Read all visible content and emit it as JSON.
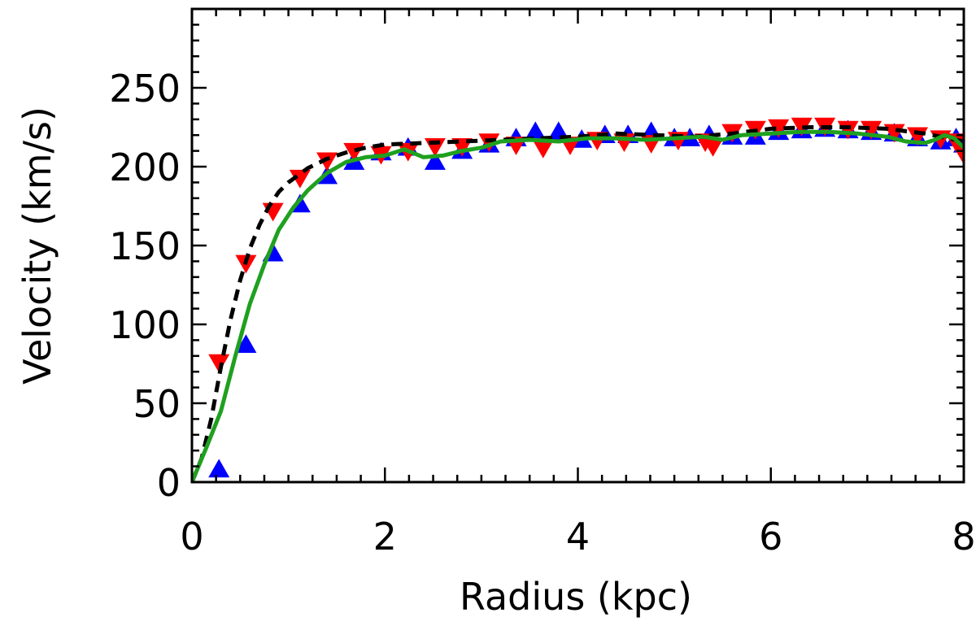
{
  "chart_data": {
    "type": "scatter",
    "title": "",
    "xlabel": "Radius (kpc)",
    "ylabel": "Velocity (km/s)",
    "xlim": [
      0,
      8
    ],
    "ylim": [
      0,
      300
    ],
    "xticks": [
      "0",
      "2",
      "4",
      "6",
      "8"
    ],
    "yticks": [
      "0",
      "50",
      "100",
      "150",
      "200",
      "250"
    ],
    "grid": false,
    "series": [
      {
        "marker": "triangle-up",
        "color": "#0000ff",
        "x": [
          0.28,
          0.56,
          0.84,
          1.12,
          1.4,
          1.68,
          1.96,
          2.24,
          2.52,
          2.8,
          3.08,
          3.36,
          3.56,
          3.8,
          4.04,
          4.28,
          4.52,
          4.76,
          5.0,
          5.16,
          5.36,
          5.6,
          5.84,
          6.08,
          6.32,
          6.56,
          6.8,
          7.04,
          7.28,
          7.52,
          7.76,
          7.92,
          8.0
        ],
        "y": [
          8,
          87,
          145,
          176,
          194,
          203,
          209,
          212,
          203,
          210,
          214,
          218,
          222,
          222,
          217,
          220,
          220,
          222,
          218,
          218,
          220,
          219,
          219,
          222,
          223,
          224,
          223,
          222,
          221,
          218,
          216,
          218,
          214
        ]
      },
      {
        "marker": "triangle-down",
        "color": "#ff0000",
        "x": [
          0.28,
          0.56,
          0.84,
          1.12,
          1.4,
          1.68,
          1.96,
          2.24,
          2.52,
          2.8,
          3.08,
          3.36,
          3.64,
          3.92,
          4.2,
          4.48,
          4.76,
          5.04,
          5.32,
          5.4,
          5.6,
          5.84,
          6.08,
          6.32,
          6.56,
          6.8,
          7.04,
          7.28,
          7.52,
          7.76,
          7.92,
          8.0
        ],
        "y": [
          76,
          139,
          172,
          193,
          204,
          210,
          208,
          210,
          213,
          213,
          216,
          214,
          212,
          214,
          217,
          216,
          215,
          217,
          216,
          213,
          222,
          224,
          225,
          226,
          226,
          224,
          224,
          222,
          220,
          218,
          216,
          208
        ]
      },
      {
        "line": "dashed",
        "color": "#000000",
        "x": [
          0.0,
          0.1,
          0.2,
          0.3,
          0.4,
          0.5,
          0.6,
          0.7,
          0.8,
          0.9,
          1.0,
          1.2,
          1.4,
          1.6,
          1.8,
          2.0,
          2.4,
          2.8,
          3.2,
          3.6,
          4.0,
          4.4,
          4.8,
          5.2,
          5.6,
          6.0,
          6.4,
          6.8,
          7.2,
          7.6,
          8.0
        ],
        "y": [
          0,
          15,
          40,
          73,
          103,
          128,
          148,
          163,
          175,
          184,
          190,
          199,
          205,
          209,
          212,
          214,
          215,
          216,
          217,
          218,
          219,
          221,
          220,
          219,
          221,
          224,
          225,
          225,
          224,
          221,
          216
        ]
      },
      {
        "line": "solid",
        "color": "#1fa01f",
        "x": [
          0.0,
          0.15,
          0.3,
          0.45,
          0.6,
          0.75,
          0.9,
          1.05,
          1.2,
          1.4,
          1.6,
          1.8,
          2.0,
          2.2,
          2.4,
          2.6,
          2.8,
          3.0,
          3.2,
          3.5,
          3.8,
          4.1,
          4.4,
          4.7,
          5.0,
          5.3,
          5.5,
          5.7,
          6.0,
          6.3,
          6.6,
          6.9,
          7.2,
          7.4,
          7.6,
          7.7,
          7.8,
          7.9,
          8.0
        ],
        "y": [
          0,
          22,
          45,
          80,
          113,
          138,
          160,
          174,
          185,
          196,
          203,
          206,
          207,
          211,
          206,
          207,
          210,
          212,
          216,
          217,
          216,
          218,
          218,
          217,
          218,
          219,
          217,
          220,
          221,
          222,
          222,
          221,
          219,
          216,
          215,
          217,
          220,
          218,
          212
        ]
      }
    ]
  }
}
